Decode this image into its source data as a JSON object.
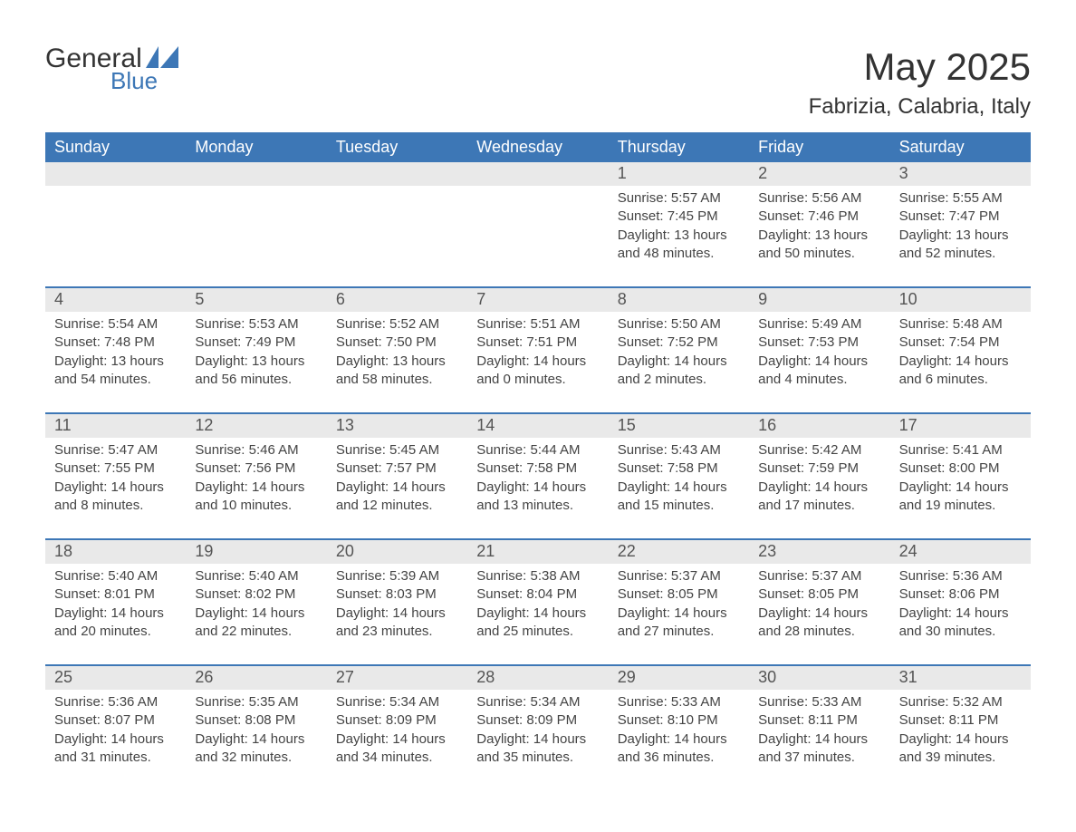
{
  "logo": {
    "text_main": "General",
    "text_sub": "Blue",
    "text_color": "#333333",
    "sub_color": "#3d77b6",
    "triangle_color": "#3d77b6"
  },
  "title": {
    "month": "May 2025",
    "location": "Fabrizia, Calabria, Italy",
    "month_fontsize": 42,
    "location_fontsize": 24,
    "color": "#333333"
  },
  "colors": {
    "header_bg": "#3d77b6",
    "header_text": "#ffffff",
    "daynum_bg": "#e9e9e9",
    "daynum_text": "#555555",
    "body_text": "#444444",
    "week_divider": "#3d77b6",
    "page_bg": "#ffffff"
  },
  "weekdays": [
    "Sunday",
    "Monday",
    "Tuesday",
    "Wednesday",
    "Thursday",
    "Friday",
    "Saturday"
  ],
  "weeks": [
    {
      "days": [
        {
          "num": "",
          "sunrise": "",
          "sunset": "",
          "daylight": ""
        },
        {
          "num": "",
          "sunrise": "",
          "sunset": "",
          "daylight": ""
        },
        {
          "num": "",
          "sunrise": "",
          "sunset": "",
          "daylight": ""
        },
        {
          "num": "",
          "sunrise": "",
          "sunset": "",
          "daylight": ""
        },
        {
          "num": "1",
          "sunrise": "Sunrise: 5:57 AM",
          "sunset": "Sunset: 7:45 PM",
          "daylight": "Daylight: 13 hours and 48 minutes."
        },
        {
          "num": "2",
          "sunrise": "Sunrise: 5:56 AM",
          "sunset": "Sunset: 7:46 PM",
          "daylight": "Daylight: 13 hours and 50 minutes."
        },
        {
          "num": "3",
          "sunrise": "Sunrise: 5:55 AM",
          "sunset": "Sunset: 7:47 PM",
          "daylight": "Daylight: 13 hours and 52 minutes."
        }
      ]
    },
    {
      "days": [
        {
          "num": "4",
          "sunrise": "Sunrise: 5:54 AM",
          "sunset": "Sunset: 7:48 PM",
          "daylight": "Daylight: 13 hours and 54 minutes."
        },
        {
          "num": "5",
          "sunrise": "Sunrise: 5:53 AM",
          "sunset": "Sunset: 7:49 PM",
          "daylight": "Daylight: 13 hours and 56 minutes."
        },
        {
          "num": "6",
          "sunrise": "Sunrise: 5:52 AM",
          "sunset": "Sunset: 7:50 PM",
          "daylight": "Daylight: 13 hours and 58 minutes."
        },
        {
          "num": "7",
          "sunrise": "Sunrise: 5:51 AM",
          "sunset": "Sunset: 7:51 PM",
          "daylight": "Daylight: 14 hours and 0 minutes."
        },
        {
          "num": "8",
          "sunrise": "Sunrise: 5:50 AM",
          "sunset": "Sunset: 7:52 PM",
          "daylight": "Daylight: 14 hours and 2 minutes."
        },
        {
          "num": "9",
          "sunrise": "Sunrise: 5:49 AM",
          "sunset": "Sunset: 7:53 PM",
          "daylight": "Daylight: 14 hours and 4 minutes."
        },
        {
          "num": "10",
          "sunrise": "Sunrise: 5:48 AM",
          "sunset": "Sunset: 7:54 PM",
          "daylight": "Daylight: 14 hours and 6 minutes."
        }
      ]
    },
    {
      "days": [
        {
          "num": "11",
          "sunrise": "Sunrise: 5:47 AM",
          "sunset": "Sunset: 7:55 PM",
          "daylight": "Daylight: 14 hours and 8 minutes."
        },
        {
          "num": "12",
          "sunrise": "Sunrise: 5:46 AM",
          "sunset": "Sunset: 7:56 PM",
          "daylight": "Daylight: 14 hours and 10 minutes."
        },
        {
          "num": "13",
          "sunrise": "Sunrise: 5:45 AM",
          "sunset": "Sunset: 7:57 PM",
          "daylight": "Daylight: 14 hours and 12 minutes."
        },
        {
          "num": "14",
          "sunrise": "Sunrise: 5:44 AM",
          "sunset": "Sunset: 7:58 PM",
          "daylight": "Daylight: 14 hours and 13 minutes."
        },
        {
          "num": "15",
          "sunrise": "Sunrise: 5:43 AM",
          "sunset": "Sunset: 7:58 PM",
          "daylight": "Daylight: 14 hours and 15 minutes."
        },
        {
          "num": "16",
          "sunrise": "Sunrise: 5:42 AM",
          "sunset": "Sunset: 7:59 PM",
          "daylight": "Daylight: 14 hours and 17 minutes."
        },
        {
          "num": "17",
          "sunrise": "Sunrise: 5:41 AM",
          "sunset": "Sunset: 8:00 PM",
          "daylight": "Daylight: 14 hours and 19 minutes."
        }
      ]
    },
    {
      "days": [
        {
          "num": "18",
          "sunrise": "Sunrise: 5:40 AM",
          "sunset": "Sunset: 8:01 PM",
          "daylight": "Daylight: 14 hours and 20 minutes."
        },
        {
          "num": "19",
          "sunrise": "Sunrise: 5:40 AM",
          "sunset": "Sunset: 8:02 PM",
          "daylight": "Daylight: 14 hours and 22 minutes."
        },
        {
          "num": "20",
          "sunrise": "Sunrise: 5:39 AM",
          "sunset": "Sunset: 8:03 PM",
          "daylight": "Daylight: 14 hours and 23 minutes."
        },
        {
          "num": "21",
          "sunrise": "Sunrise: 5:38 AM",
          "sunset": "Sunset: 8:04 PM",
          "daylight": "Daylight: 14 hours and 25 minutes."
        },
        {
          "num": "22",
          "sunrise": "Sunrise: 5:37 AM",
          "sunset": "Sunset: 8:05 PM",
          "daylight": "Daylight: 14 hours and 27 minutes."
        },
        {
          "num": "23",
          "sunrise": "Sunrise: 5:37 AM",
          "sunset": "Sunset: 8:05 PM",
          "daylight": "Daylight: 14 hours and 28 minutes."
        },
        {
          "num": "24",
          "sunrise": "Sunrise: 5:36 AM",
          "sunset": "Sunset: 8:06 PM",
          "daylight": "Daylight: 14 hours and 30 minutes."
        }
      ]
    },
    {
      "days": [
        {
          "num": "25",
          "sunrise": "Sunrise: 5:36 AM",
          "sunset": "Sunset: 8:07 PM",
          "daylight": "Daylight: 14 hours and 31 minutes."
        },
        {
          "num": "26",
          "sunrise": "Sunrise: 5:35 AM",
          "sunset": "Sunset: 8:08 PM",
          "daylight": "Daylight: 14 hours and 32 minutes."
        },
        {
          "num": "27",
          "sunrise": "Sunrise: 5:34 AM",
          "sunset": "Sunset: 8:09 PM",
          "daylight": "Daylight: 14 hours and 34 minutes."
        },
        {
          "num": "28",
          "sunrise": "Sunrise: 5:34 AM",
          "sunset": "Sunset: 8:09 PM",
          "daylight": "Daylight: 14 hours and 35 minutes."
        },
        {
          "num": "29",
          "sunrise": "Sunrise: 5:33 AM",
          "sunset": "Sunset: 8:10 PM",
          "daylight": "Daylight: 14 hours and 36 minutes."
        },
        {
          "num": "30",
          "sunrise": "Sunrise: 5:33 AM",
          "sunset": "Sunset: 8:11 PM",
          "daylight": "Daylight: 14 hours and 37 minutes."
        },
        {
          "num": "31",
          "sunrise": "Sunrise: 5:32 AM",
          "sunset": "Sunset: 8:11 PM",
          "daylight": "Daylight: 14 hours and 39 minutes."
        }
      ]
    }
  ]
}
